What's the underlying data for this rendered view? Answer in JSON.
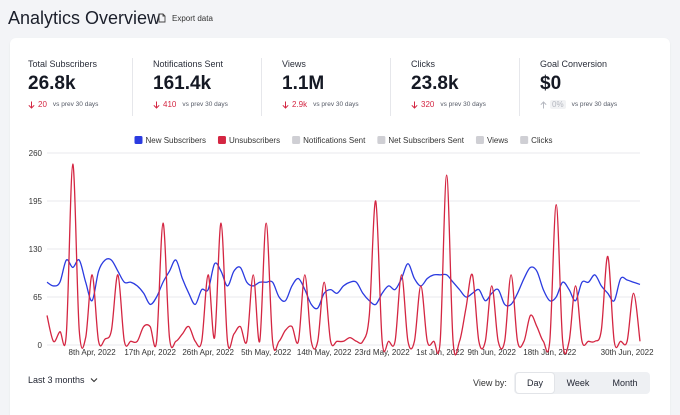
{
  "header": {
    "title": "Analytics Overview",
    "export_button": "Export data"
  },
  "stats": [
    {
      "label": "Total Subscribers",
      "value": "26.8k",
      "delta": "20",
      "trend": "down",
      "note": "vs prev 30 days"
    },
    {
      "label": "Notifications Sent",
      "value": "161.4k",
      "delta": "410",
      "trend": "down",
      "note": "vs prev 30 days"
    },
    {
      "label": "Views",
      "value": "1.1M",
      "delta": "2.9k",
      "trend": "down",
      "note": "vs prev 30 days"
    },
    {
      "label": "Clicks",
      "value": "23.8k",
      "delta": "320",
      "trend": "down",
      "note": "vs prev 30 days"
    },
    {
      "label": "Goal Conversion",
      "value": "$0",
      "delta": "0%",
      "trend": "up",
      "note": "vs prev 30 days"
    }
  ],
  "chart_data": {
    "type": "line",
    "categories": [
      null,
      null,
      null,
      null,
      null,
      null,
      null,
      "8th Apr, 2022",
      null,
      null,
      null,
      null,
      null,
      null,
      null,
      null,
      "17th Apr, 2022",
      null,
      null,
      null,
      null,
      null,
      null,
      null,
      null,
      "26th Apr, 2022",
      null,
      null,
      null,
      null,
      null,
      null,
      null,
      null,
      "5th May, 2022",
      null,
      null,
      null,
      null,
      null,
      null,
      null,
      null,
      "14th May, 2022",
      null,
      null,
      null,
      null,
      null,
      null,
      null,
      null,
      "23rd May, 2022",
      null,
      null,
      null,
      null,
      null,
      null,
      null,
      null,
      "1st Jun, 2022",
      null,
      null,
      null,
      null,
      null,
      null,
      null,
      "9th Jun, 2022",
      null,
      null,
      null,
      null,
      null,
      null,
      null,
      null,
      "18th Jun, 2022",
      null,
      null,
      null,
      null,
      null,
      null,
      null,
      null,
      null,
      null,
      null,
      "30th Jun, 2022",
      null,
      null
    ],
    "series": [
      {
        "name": "New Subscribers",
        "color": "#2b3be0",
        "values": [
          85,
          80,
          85,
          115,
          105,
          115,
          85,
          60,
          100,
          115,
          115,
          100,
          85,
          85,
          80,
          70,
          55,
          65,
          85,
          100,
          115,
          90,
          70,
          55,
          75,
          75,
          110,
          100,
          80,
          100,
          105,
          85,
          80,
          85,
          85,
          85,
          65,
          60,
          80,
          90,
          75,
          55,
          50,
          70,
          75,
          70,
          80,
          85,
          85,
          70,
          60,
          55,
          70,
          80,
          75,
          90,
          110,
          90,
          80,
          90,
          95,
          95,
          95,
          85,
          75,
          65,
          70,
          75,
          60,
          70,
          75,
          55,
          55,
          70,
          90,
          105,
          100,
          75,
          60,
          65,
          85,
          75,
          60,
          85,
          85,
          95,
          80,
          70,
          60,
          90,
          88,
          85,
          82
        ]
      },
      {
        "name": "Unsubscribers",
        "color": "#d42642",
        "values": [
          40,
          5,
          18,
          15,
          245,
          20,
          10,
          95,
          5,
          8,
          20,
          95,
          5,
          5,
          5,
          25,
          25,
          5,
          165,
          10,
          5,
          15,
          25,
          5,
          5,
          95,
          10,
          165,
          5,
          15,
          25,
          5,
          95,
          5,
          165,
          5,
          5,
          20,
          25,
          5,
          95,
          5,
          5,
          85,
          5,
          5,
          5,
          10,
          5,
          5,
          40,
          195,
          5,
          5,
          5,
          95,
          5,
          5,
          80,
          5,
          5,
          5,
          230,
          5,
          5,
          50,
          95,
          5,
          5,
          80,
          5,
          5,
          95,
          5,
          5,
          40,
          25,
          5,
          5,
          190,
          5,
          5,
          80,
          5,
          5,
          5,
          20,
          120,
          5,
          5,
          5,
          70,
          5
        ]
      }
    ],
    "inactive_series": [
      {
        "name": "Notifications Sent"
      },
      {
        "name": "Net Subscribers Sent"
      },
      {
        "name": "Views"
      },
      {
        "name": "Clicks"
      }
    ],
    "inactive_color": "#cfcfd4",
    "ylim": [
      0,
      260
    ],
    "yticks": [
      0,
      65,
      130,
      195,
      260
    ],
    "grid": true,
    "legend": "top"
  },
  "footer": {
    "range_selector": "Last 3 months",
    "view_by_label": "View by:",
    "view_options": [
      "Day",
      "Week",
      "Month"
    ],
    "selected_view": 0
  }
}
